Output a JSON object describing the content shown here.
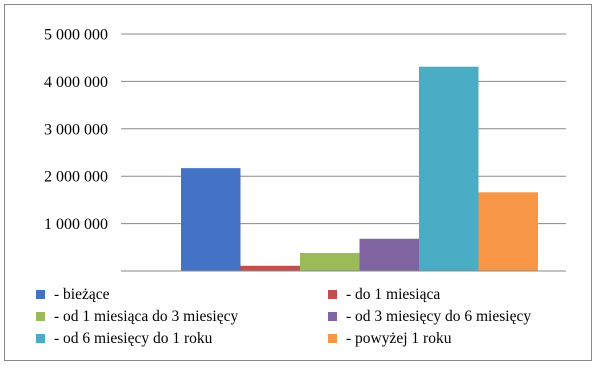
{
  "chart_data": {
    "type": "bar",
    "title": "",
    "xlabel": "",
    "ylabel": "",
    "ylim": [
      0,
      5000000
    ],
    "yticks": [
      1000000,
      2000000,
      3000000,
      4000000,
      5000000
    ],
    "ytick_labels": [
      "1 000 000",
      "2 000 000",
      "3 000 000",
      "4 000 000",
      "5 000 000"
    ],
    "grid": "horizontal",
    "legend_position": "bottom",
    "series": [
      {
        "name": "- bieżące",
        "values": [
          2170000
        ],
        "color": "#4472C4"
      },
      {
        "name": "- do 1 miesiąca",
        "values": [
          110000
        ],
        "color": "#C0504D"
      },
      {
        "name": "- od 1 miesiąca do 3 miesięcy",
        "values": [
          380000
        ],
        "color": "#9BBB59"
      },
      {
        "name": "- od 3 miesięcy do 6 miesięcy",
        "values": [
          680000
        ],
        "color": "#8064A2"
      },
      {
        "name": "- od 6 miesięcy do 1 roku",
        "values": [
          4310000
        ],
        "color": "#4BACC6"
      },
      {
        "name": "- powyżej 1 roku",
        "values": [
          1660000
        ],
        "color": "#F79646"
      }
    ]
  }
}
